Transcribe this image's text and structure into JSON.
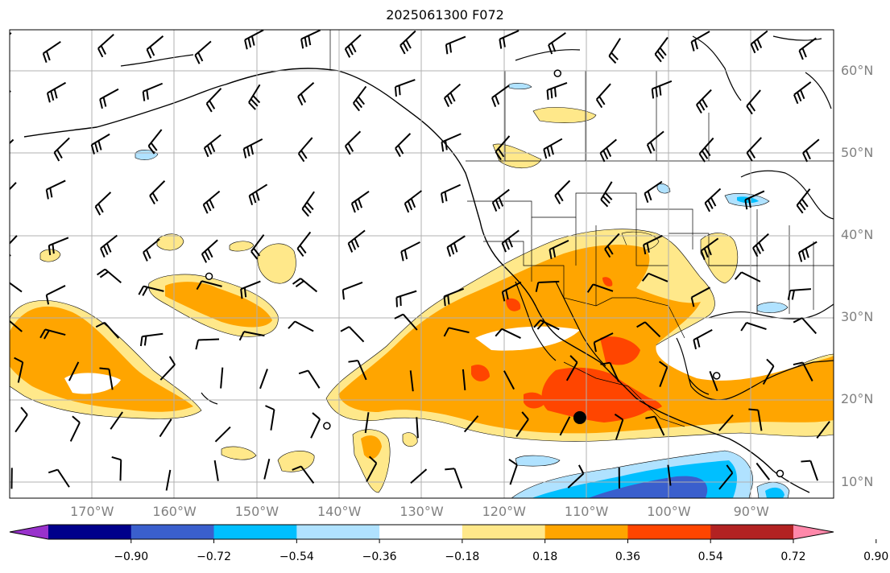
{
  "title": "2025061300 F072",
  "latitude_labels": [
    "60°N",
    "50°N",
    "40°N",
    "30°N",
    "20°N",
    "10°N"
  ],
  "longitude_labels": [
    "170°W",
    "160°W",
    "150°W",
    "140°W",
    "130°W",
    "120°W",
    "110°W",
    "100°W",
    "90°W"
  ],
  "colorbar": {
    "tick_labels": [
      "−0.90",
      "−0.72",
      "−0.54",
      "−0.36",
      "−0.18",
      "0.18",
      "0.36",
      "0.54",
      "0.72",
      "0.90"
    ],
    "colors": [
      "#9932cc",
      "#00008b",
      "#3a5fcd",
      "#00bfff",
      "#b0e2ff",
      "#ffffff",
      "#ffe88a",
      "#ffa500",
      "#ff4500",
      "#b22222",
      "#ff88aa"
    ]
  },
  "map": {
    "extent": {
      "lon_min": -180,
      "lon_max": -80,
      "lat_min": 8,
      "lat_max": 65
    },
    "marker": {
      "lon": -110.8,
      "lat": 17.8,
      "color": "#000000"
    },
    "open_circle_markers": [
      {
        "lon": -155.8,
        "lat": 35.0
      },
      {
        "lon": -141.5,
        "lat": 16.8
      },
      {
        "lon": -113.5,
        "lat": 59.7
      },
      {
        "lon": -94.2,
        "lat": 22.9
      },
      {
        "lon": -86.5,
        "lat": 11.0
      }
    ]
  }
}
